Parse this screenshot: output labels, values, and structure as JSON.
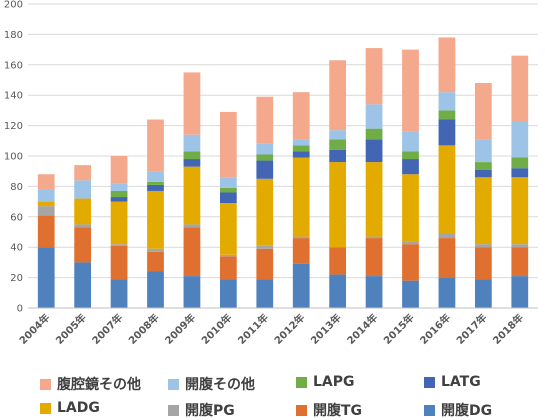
{
  "chart_data": {
    "type": "bar",
    "stacked": true,
    "categories": [
      "2004年",
      "2005年",
      "2007年",
      "2008年",
      "2009年",
      "2010年",
      "2011年",
      "2012年",
      "2013年",
      "2014年",
      "2015年",
      "2016年",
      "2017年",
      "2018年"
    ],
    "ylim": [
      0,
      200
    ],
    "yticks": [
      0,
      20,
      40,
      60,
      80,
      100,
      120,
      140,
      160,
      180,
      200
    ],
    "grid": true,
    "legend_position": "bottom",
    "series": [
      {
        "name": "開腹DG",
        "color": "#4f81bd",
        "values": [
          40,
          30,
          19,
          24,
          21,
          19,
          19,
          29,
          22,
          21,
          18,
          20,
          19,
          21
        ]
      },
      {
        "name": "開腹TG",
        "color": "#e0702f",
        "values": [
          21,
          23,
          22,
          13,
          32,
          15,
          20,
          17,
          18,
          25,
          24,
          26,
          21,
          19
        ]
      },
      {
        "name": "開腹PG",
        "color": "#a5a5a5",
        "values": [
          6,
          2,
          1,
          2,
          2,
          1,
          2,
          1,
          0,
          1,
          2,
          3,
          2,
          2
        ]
      },
      {
        "name": "LADG",
        "color": "#e3ab00",
        "values": [
          3,
          17,
          28,
          38,
          38,
          34,
          44,
          52,
          56,
          49,
          44,
          58,
          44,
          44
        ]
      },
      {
        "name": "LATG",
        "color": "#4266b4",
        "values": [
          0,
          0,
          3,
          4,
          5,
          7,
          12,
          4,
          8,
          15,
          10,
          17,
          5,
          6
        ]
      },
      {
        "name": "LAPG",
        "color": "#70ad47",
        "values": [
          0,
          0,
          4,
          2,
          5,
          3,
          4,
          4,
          7,
          7,
          5,
          6,
          5,
          7
        ]
      },
      {
        "name": "開腹その他",
        "color": "#9dc3e6",
        "values": [
          8,
          12,
          5,
          7,
          11,
          7,
          7,
          4,
          6,
          16,
          13,
          12,
          15,
          24
        ]
      },
      {
        "name": "腹腔鏡その他",
        "color": "#f4a98c",
        "values": [
          10,
          10,
          18,
          34,
          41,
          43,
          31,
          31,
          46,
          37,
          54,
          36,
          37,
          43
        ]
      }
    ]
  },
  "legend": {
    "items": [
      {
        "label": "腹腔鏡その他",
        "color": "#f4a98c"
      },
      {
        "label": "開腹その他",
        "color": "#9dc3e6"
      },
      {
        "label": "LAPG",
        "color": "#70ad47"
      },
      {
        "label": "LATG",
        "color": "#4266b4"
      },
      {
        "label": "LADG",
        "color": "#e3ab00"
      },
      {
        "label": "開腹PG",
        "color": "#a5a5a5"
      },
      {
        "label": "開腹TG",
        "color": "#e0702f"
      },
      {
        "label": "開腹DG",
        "color": "#4f81bd"
      }
    ]
  }
}
